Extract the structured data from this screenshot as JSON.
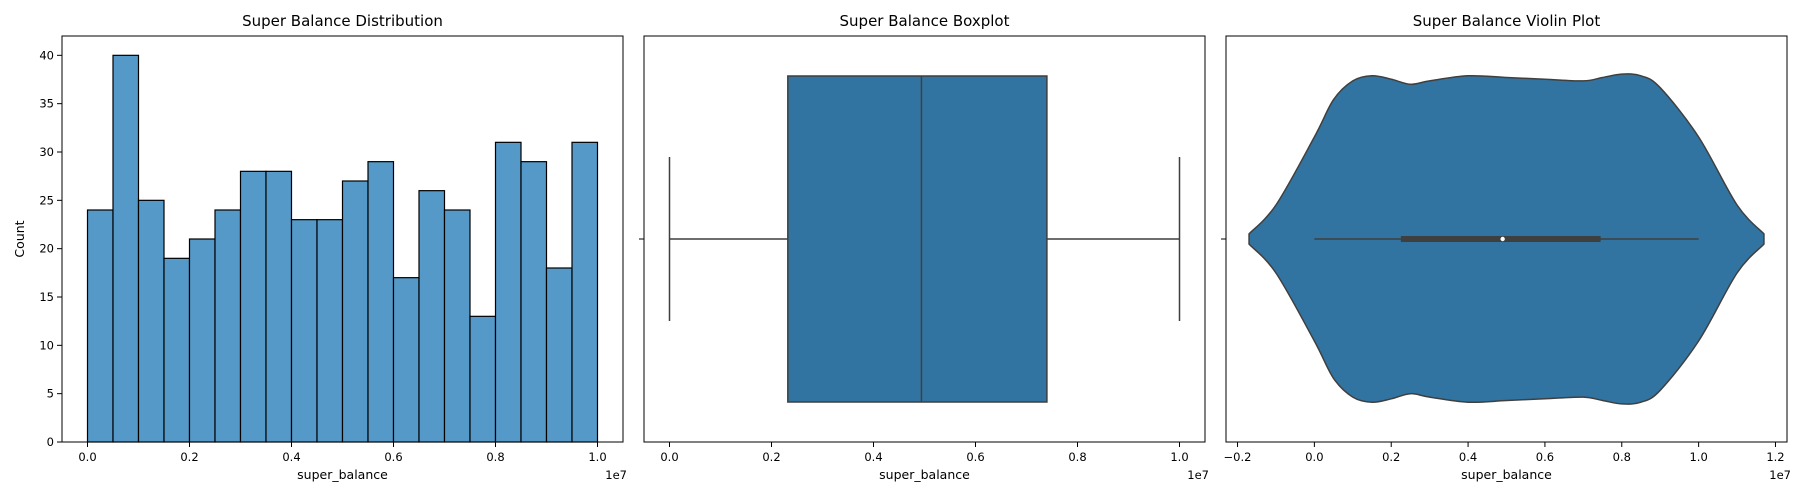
{
  "chart_data": [
    {
      "type": "bar",
      "title": "Super Balance Distribution",
      "xlabel": "super_balance",
      "ylabel": "Count",
      "x_offset_label": "1e7",
      "xlim": [
        -0.05,
        1.05
      ],
      "ylim": [
        0,
        42
      ],
      "xticks": [
        "0.0",
        "0.2",
        "0.4",
        "0.6",
        "0.8",
        "1.0"
      ],
      "yticks": [
        "0",
        "5",
        "10",
        "15",
        "20",
        "25",
        "30",
        "35",
        "40"
      ],
      "bin_start": 0.0,
      "bin_width": 0.05,
      "values": [
        24,
        40,
        25,
        19,
        21,
        24,
        28,
        28,
        23,
        23,
        27,
        29,
        17,
        26,
        24,
        13,
        31,
        29,
        18,
        31
      ],
      "color": "#5599c8"
    },
    {
      "type": "box",
      "title": "Super Balance Boxplot",
      "xlabel": "super_balance",
      "x_offset_label": "1e7",
      "xlim": [
        -0.05,
        1.05
      ],
      "xticks": [
        "0.0",
        "0.2",
        "0.4",
        "0.6",
        "0.8",
        "1.0"
      ],
      "whisker_low": 0.0,
      "q1": 0.232,
      "median": 0.494,
      "q3": 0.74,
      "whisker_high": 1.0,
      "color": "#3274a1"
    },
    {
      "type": "violin",
      "title": "Super Balance Violin Plot",
      "xlabel": "super_balance",
      "x_offset_label": "1e7",
      "xlim": [
        -0.23,
        1.23
      ],
      "xticks": [
        "−0.2",
        "0.0",
        "0.2",
        "0.4",
        "0.6",
        "0.8",
        "1.0",
        "1.2"
      ],
      "density_x": [
        -0.17,
        -0.1,
        0.0,
        0.05,
        0.1,
        0.15,
        0.2,
        0.25,
        0.3,
        0.4,
        0.5,
        0.6,
        0.7,
        0.75,
        0.8,
        0.85,
        0.9,
        1.0,
        1.1,
        1.17
      ],
      "density_halfwidth": [
        0.03,
        0.2,
        0.6,
        0.82,
        0.93,
        0.96,
        0.94,
        0.91,
        0.93,
        0.96,
        0.95,
        0.94,
        0.93,
        0.95,
        0.97,
        0.96,
        0.89,
        0.6,
        0.2,
        0.03
      ],
      "box_q1": 0.225,
      "median": 0.49,
      "box_q3": 0.745,
      "whisker_low": 0.0,
      "whisker_high": 1.0,
      "color": "#3274a1"
    }
  ]
}
